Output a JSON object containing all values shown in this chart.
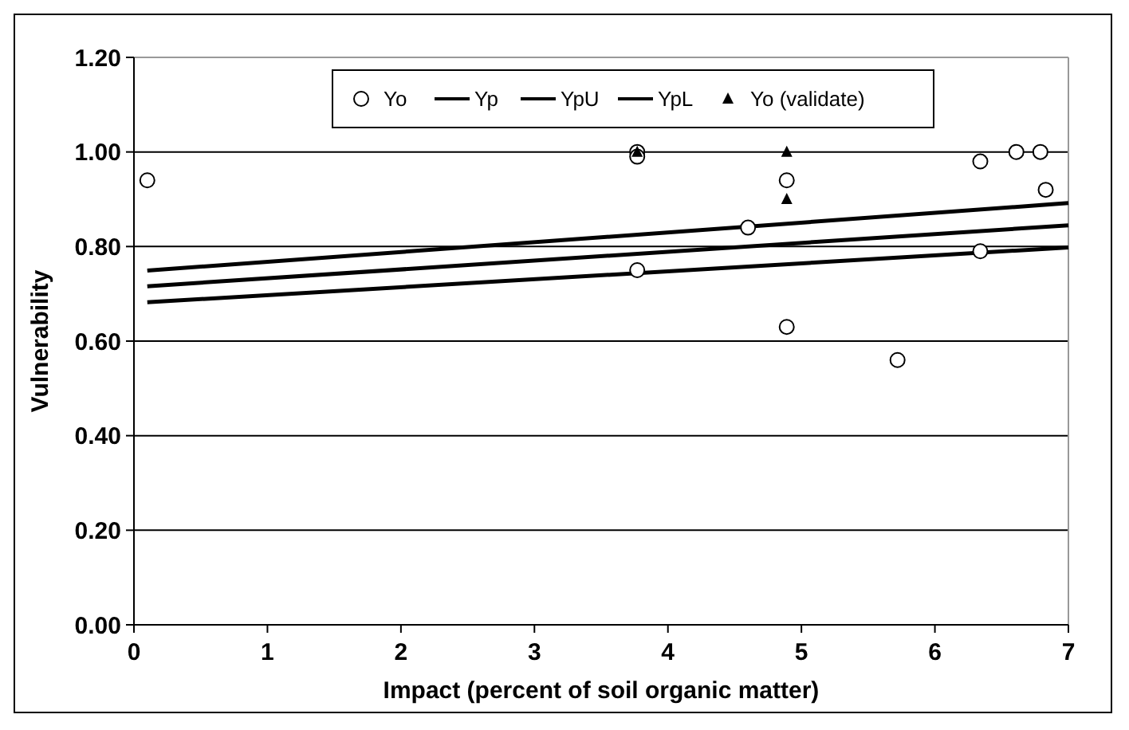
{
  "chart_data": {
    "type": "scatter",
    "xlabel": "Impact (percent of soil organic matter)",
    "ylabel": "Vulnerability",
    "xlim": [
      0,
      7
    ],
    "xticks": [
      0,
      1,
      2,
      3,
      4,
      5,
      6,
      7
    ],
    "ylim": [
      0,
      1.2
    ],
    "yticks": [
      {
        "value": 0,
        "label": "0.00"
      },
      {
        "value": 0.2,
        "label": "0.20"
      },
      {
        "value": 0.4,
        "label": "0.40"
      },
      {
        "value": 0.6,
        "label": "0.60"
      },
      {
        "value": 0.8,
        "label": "0.80"
      },
      {
        "value": 1,
        "label": "1.00"
      },
      {
        "value": 1.2,
        "label": "1.20"
      }
    ],
    "grid": "y",
    "legend": "top",
    "series": [
      {
        "name": "Yo",
        "marker": "circle",
        "color": "#000000",
        "x": [
          0.1,
          3.77,
          3.77,
          3.77,
          4.6,
          4.89,
          4.89,
          5.72,
          6.34,
          6.34,
          6.61,
          6.79,
          6.83
        ],
        "values": [
          0.94,
          1.0,
          0.99,
          0.75,
          0.84,
          0.94,
          0.63,
          0.56,
          0.98,
          0.79,
          1.0,
          1.0,
          0.92
        ]
      },
      {
        "name": "Yp",
        "type": "line",
        "color": "#000000",
        "x": [
          0.1,
          7
        ],
        "values": [
          0.716,
          0.845
        ]
      },
      {
        "name": "YpU",
        "type": "line",
        "color": "#000000",
        "x": [
          0.1,
          7
        ],
        "values": [
          0.749,
          0.892
        ]
      },
      {
        "name": "YpL",
        "type": "line",
        "color": "#000000",
        "x": [
          0.1,
          7
        ],
        "values": [
          0.682,
          0.798
        ]
      },
      {
        "name": "Yo (validate)",
        "marker": "triangle",
        "color": "#000000",
        "x": [
          3.77,
          4.89,
          4.89
        ],
        "values": [
          1.0,
          1.0,
          0.9
        ]
      }
    ]
  }
}
